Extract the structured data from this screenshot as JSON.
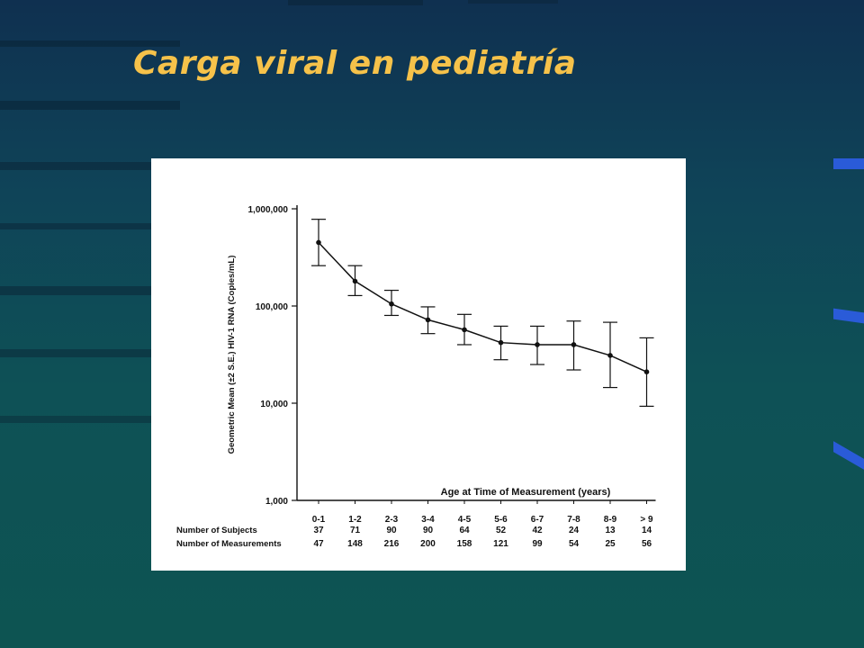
{
  "slide": {
    "title": "Carga viral en pediatría"
  },
  "colors": {
    "title": "#f6c24a",
    "background": "#0e5156",
    "accent_blue": "#2a5bd8"
  },
  "chart_data": {
    "type": "line",
    "title": "",
    "xlabel": "Age at Time of Measurement (years)",
    "ylabel": "Geometric Mean (±2 S.E.) HIV-1 RNA (Copies/mL)",
    "y_scale": "log",
    "ylim": [
      1000,
      1000000
    ],
    "y_ticks": [
      1000,
      10000,
      100000,
      1000000
    ],
    "y_tick_labels": [
      "1,000",
      "10,000",
      "100,000",
      "1,000,000"
    ],
    "categories": [
      "0-1",
      "1-2",
      "2-3",
      "3-4",
      "4-5",
      "5-6",
      "6-7",
      "7-8",
      "8-9",
      "> 9"
    ],
    "series": [
      {
        "values": [
          450000,
          180000,
          105000,
          72000,
          57000,
          42000,
          40000,
          40000,
          31000,
          21000
        ],
        "upper": [
          780000,
          260000,
          145000,
          98000,
          82000,
          62000,
          62000,
          70000,
          68000,
          47000
        ],
        "lower": [
          260000,
          128000,
          80000,
          52000,
          40000,
          28000,
          25000,
          22000,
          14500,
          9300
        ]
      }
    ],
    "table": {
      "row_labels": [
        "Number of Subjects",
        "Number of Measurements"
      ],
      "rows": [
        [
          "37",
          "71",
          "90",
          "90",
          "64",
          "52",
          "42",
          "24",
          "13",
          "14"
        ],
        [
          "47",
          "148",
          "216",
          "200",
          "158",
          "121",
          "99",
          "54",
          "25",
          "56"
        ]
      ]
    }
  }
}
